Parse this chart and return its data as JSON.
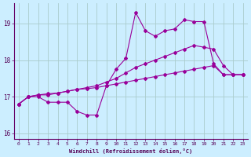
{
  "xlabel": "Windchill (Refroidissement éolien,°C)",
  "background_color": "#cceeff",
  "grid_color": "#aacccc",
  "line_color": "#990099",
  "x": [
    0,
    1,
    2,
    3,
    4,
    5,
    6,
    7,
    8,
    9,
    10,
    11,
    12,
    13,
    14,
    15,
    16,
    17,
    18,
    19,
    20,
    21,
    22,
    23
  ],
  "line1": [
    16.8,
    17.0,
    17.0,
    16.85,
    16.85,
    16.85,
    16.6,
    16.5,
    16.5,
    17.3,
    17.75,
    18.05,
    19.3,
    18.8,
    18.65,
    18.8,
    18.85,
    19.1,
    19.05,
    19.05,
    17.9,
    17.6,
    17.6,
    17.6
  ],
  "line2": [
    16.8,
    17.0,
    17.05,
    17.05,
    17.1,
    17.15,
    17.2,
    17.25,
    17.3,
    17.4,
    17.5,
    17.65,
    17.8,
    17.9,
    18.0,
    18.1,
    18.2,
    18.3,
    18.4,
    18.35,
    18.3,
    17.85,
    17.6,
    17.6
  ],
  "line3": [
    16.8,
    17.0,
    17.05,
    17.08,
    17.1,
    17.15,
    17.2,
    17.22,
    17.25,
    17.3,
    17.35,
    17.4,
    17.45,
    17.5,
    17.55,
    17.6,
    17.65,
    17.7,
    17.75,
    17.8,
    17.85,
    17.6,
    17.6,
    17.6
  ],
  "ylim": [
    15.85,
    19.55
  ],
  "xlim": [
    -0.5,
    23.5
  ],
  "yticks": [
    16,
    17,
    18,
    19
  ],
  "xticks": [
    0,
    1,
    2,
    3,
    4,
    5,
    6,
    7,
    8,
    9,
    10,
    11,
    12,
    13,
    14,
    15,
    16,
    17,
    18,
    19,
    20,
    21,
    22,
    23
  ]
}
